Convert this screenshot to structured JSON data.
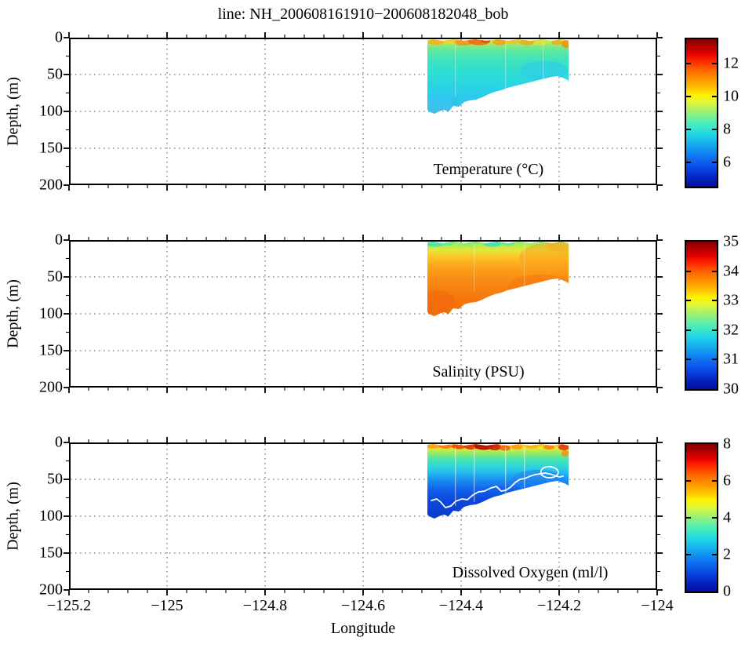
{
  "figure": {
    "title": "line: NH_200608161910−200608182048_bob",
    "xlabel": "Longitude",
    "ylabel": "Depth, (m)"
  },
  "axes": {
    "x_tick_labels": [
      "−125.2",
      "−125",
      "−124.8",
      "−124.6",
      "−124.4",
      "−124.2",
      "−124"
    ],
    "y_tick_labels": [
      "0",
      "50",
      "100",
      "150",
      "200"
    ]
  },
  "panels": [
    {
      "label": "Temperature (°C)",
      "colorbar_labels": [
        "12",
        "10",
        "8",
        "6"
      ]
    },
    {
      "label": "Salinity (PSU)",
      "colorbar_labels": [
        "35",
        "34",
        "33",
        "32",
        "31",
        "30"
      ]
    },
    {
      "label": "Dissolved Oxygen (ml/l)",
      "colorbar_labels": [
        "8",
        "6",
        "4",
        "2",
        "0"
      ]
    }
  ],
  "chart_data": [
    {
      "type": "heatmap",
      "variable": "Temperature",
      "units": "°C",
      "title": "Temperature (°C)",
      "xlabel": "Longitude",
      "ylabel": "Depth, (m)",
      "x_range": [
        -125.2,
        -124
      ],
      "x_ticks": [
        -125.2,
        -125,
        -124.8,
        -124.6,
        -124.4,
        -124.2,
        -124
      ],
      "y_range": [
        0,
        200
      ],
      "y_ticks": [
        0,
        50,
        100,
        150,
        200
      ],
      "y_axis_direction": "down",
      "grid": "dotted",
      "colormap": "jet",
      "colorbar_ticks": [
        6,
        8,
        10,
        12
      ],
      "colorbar_range": [
        4.5,
        13.5
      ],
      "data_extent": {
        "longitude": [
          -124.47,
          -124.18
        ],
        "depth_m": [
          0,
          100
        ]
      },
      "seafloor_depth_m": {
        "west": 100,
        "east": 55
      },
      "representative_profile": [
        {
          "depth_m": 0,
          "value": 10.5
        },
        {
          "depth_m": 5,
          "value": 9.5
        },
        {
          "depth_m": 20,
          "value": 8.8
        },
        {
          "depth_m": 50,
          "value": 8.2
        },
        {
          "depth_m": 100,
          "value": 7.6
        }
      ],
      "notes": "Warm 10–12 °C orange patches in the upper ~10 m, ~8–9 °C green-cyan interior, coolest ~7.5 °C cyan near the seafloor; seafloor shoals eastward from ~100 m to ~55 m"
    },
    {
      "type": "heatmap",
      "variable": "Salinity",
      "units": "PSU",
      "title": "Salinity (PSU)",
      "xlabel": "Longitude",
      "ylabel": "Depth, (m)",
      "x_range": [
        -125.2,
        -124
      ],
      "x_ticks": [
        -125.2,
        -125,
        -124.8,
        -124.6,
        -124.4,
        -124.2,
        -124
      ],
      "y_range": [
        0,
        200
      ],
      "y_ticks": [
        0,
        50,
        100,
        150,
        200
      ],
      "y_axis_direction": "down",
      "grid": "dotted",
      "colormap": "jet",
      "colorbar_ticks": [
        30,
        31,
        32,
        33,
        34,
        35
      ],
      "colorbar_range": [
        30,
        35
      ],
      "data_extent": {
        "longitude": [
          -124.47,
          -124.18
        ],
        "depth_m": [
          0,
          100
        ]
      },
      "seafloor_depth_m": {
        "west": 100,
        "east": 55
      },
      "representative_profile": [
        {
          "depth_m": 0,
          "value": 32.4
        },
        {
          "depth_m": 5,
          "value": 32.8
        },
        {
          "depth_m": 15,
          "value": 33.2
        },
        {
          "depth_m": 30,
          "value": 33.6
        },
        {
          "depth_m": 60,
          "value": 33.9
        },
        {
          "depth_m": 100,
          "value": 34.1
        }
      ],
      "notes": "Fresher green surface layer (~32–32.5 PSU) over saltier orange water (~33.5–34 PSU) below ~30 m; eastern surface water saltier (yellow-orange)"
    },
    {
      "type": "heatmap",
      "variable": "Dissolved Oxygen",
      "units": "ml/l",
      "title": "Dissolved Oxygen (ml/l)",
      "xlabel": "Longitude",
      "ylabel": "Depth, (m)",
      "x_range": [
        -125.2,
        -124
      ],
      "x_ticks": [
        -125.2,
        -125,
        -124.8,
        -124.6,
        -124.4,
        -124.2,
        -124
      ],
      "y_range": [
        0,
        200
      ],
      "y_ticks": [
        0,
        50,
        100,
        150,
        200
      ],
      "y_axis_direction": "down",
      "grid": "dotted",
      "colormap": "jet",
      "colorbar_ticks": [
        0,
        2,
        4,
        6,
        8
      ],
      "colorbar_range": [
        0,
        8
      ],
      "data_extent": {
        "longitude": [
          -124.47,
          -124.18
        ],
        "depth_m": [
          0,
          100
        ]
      },
      "seafloor_depth_m": {
        "west": 100,
        "east": 55
      },
      "representative_profile": [
        {
          "depth_m": 0,
          "value": 6.5
        },
        {
          "depth_m": 5,
          "value": 5.0
        },
        {
          "depth_m": 15,
          "value": 4.0
        },
        {
          "depth_m": 25,
          "value": 3.0
        },
        {
          "depth_m": 40,
          "value": 2.0
        },
        {
          "depth_m": 60,
          "value": 1.0
        },
        {
          "depth_m": 100,
          "value": 0.6
        }
      ],
      "overlay_contour": {
        "color": "#ffffff",
        "location": "outlines the low-oxygen (dark blue) near-bottom layer"
      },
      "notes": "High-oxygen red/orange patches (6–8 ml/l) at the surface dropping sharply to <1 ml/l dark blue near the bottom; white contour traces the hypoxic layer boundary"
    }
  ]
}
